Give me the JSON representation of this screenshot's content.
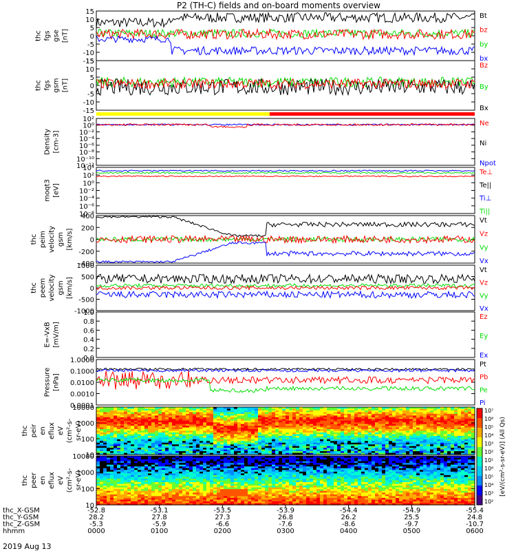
{
  "title": "P2 (TH-C) fields and on-board moments overview",
  "date_label": "2019 Aug 13",
  "colors": {
    "black": "#000000",
    "red": "#ff0000",
    "green": "#00dd00",
    "blue": "#0000ff",
    "yellow": "#ffff00"
  },
  "chart_data": [
    {
      "type": "line",
      "panel": "fgs_gse",
      "ylabel": [
        "thc",
        "fgs",
        "gse",
        "[nT]"
      ],
      "ylim": [
        -15,
        15
      ],
      "yticks": [
        "15",
        "10",
        "5",
        "0",
        "-5",
        "-10",
        "-15"
      ],
      "legend": [
        "Bt",
        "bz",
        "by",
        "bx"
      ],
      "series": [
        {
          "name": "Bt",
          "color": "#000000",
          "pre": [
            7,
            12
          ],
          "post": [
            10,
            15
          ],
          "sign": 1
        },
        {
          "name": "bz",
          "color": "#ff0000",
          "pre": [
            0,
            3
          ],
          "post": [
            1,
            3
          ],
          "sign": 1
        },
        {
          "name": "by",
          "color": "#00dd00",
          "pre": [
            1,
            3
          ],
          "post": [
            1,
            2
          ],
          "sign": 1
        },
        {
          "name": "bx",
          "color": "#0000ff",
          "pre": [
            -1,
            -3
          ],
          "post": [
            -8,
            -12
          ],
          "sign": -1
        }
      ]
    },
    {
      "type": "line",
      "panel": "fgs_gsm",
      "ylabel": [
        "thc",
        "fgs",
        "gsm",
        "[nT]"
      ],
      "ylim": [
        -15,
        15
      ],
      "yticks": [
        "15",
        "10",
        "5",
        "0",
        "-5",
        "-10",
        "-15"
      ],
      "legend": [
        "Bz",
        "By",
        "Bx"
      ],
      "series": [
        {
          "name": "Bz",
          "color": "#ff0000",
          "base": 1
        },
        {
          "name": "By",
          "color": "#00dd00",
          "base": 2
        },
        {
          "name": "Bx",
          "color": "#000000",
          "base": -2
        }
      ]
    },
    {
      "type": "line",
      "panel": "density",
      "ylabel": [
        "Density",
        "[cm-3]"
      ],
      "yticks": [
        "10²",
        "10⁰",
        "10⁻²",
        "10⁻⁴",
        "10⁻⁶",
        "10⁻⁸",
        "10⁻¹⁰",
        "10⁻¹²"
      ],
      "legend": [
        "Ne",
        "Ni",
        "Npot"
      ],
      "series": [
        {
          "name": "Ne",
          "color": "#ff0000",
          "log": 0
        },
        {
          "name": "Npot",
          "color": "#0000ff",
          "log": 0
        }
      ]
    },
    {
      "type": "line",
      "panel": "temperature",
      "ylabel": [
        "moqt3",
        "[eV]"
      ],
      "yticks": [
        "10⁴",
        "10²",
        "10⁰",
        "10⁻²",
        "10⁻⁴",
        "10⁻⁶",
        "10⁻⁸"
      ],
      "legend": [
        "Te⊥",
        "Te||",
        "Ti⊥",
        "Ti||"
      ],
      "series": [
        {
          "name": "Ti⊥",
          "color": "#0000ff",
          "log": 3
        },
        {
          "name": "Ti||",
          "color": "#00dd00",
          "log": 2.5
        },
        {
          "name": "Te⊥",
          "color": "#ff0000",
          "log": 1.6
        }
      ]
    },
    {
      "type": "line",
      "panel": "peim_velocity",
      "ylabel": [
        "thc",
        "peim",
        "velocity",
        "gsm",
        "[km/s]"
      ],
      "ylim": [
        -400,
        400
      ],
      "yticks": [
        "400",
        "200",
        "0",
        "-200",
        "-400"
      ],
      "legend": [
        "Vt",
        "Vz",
        "Vy",
        "Vx"
      ],
      "series": [
        {
          "name": "Vt",
          "color": "#000000"
        },
        {
          "name": "Vz",
          "color": "#ff0000"
        },
        {
          "name": "Vy",
          "color": "#00dd00"
        },
        {
          "name": "Vx",
          "color": "#0000ff"
        }
      ]
    },
    {
      "type": "line",
      "panel": "peem_velocity",
      "ylabel": [
        "thc",
        "peem",
        "velocity",
        "gsm",
        "[km/s]"
      ],
      "ylim": [
        -1000,
        1000
      ],
      "yticks": [
        "1000",
        "500",
        "0",
        "-500",
        "-1000"
      ],
      "legend": [
        "Vt",
        "Vz",
        "Vy",
        "Vx"
      ]
    },
    {
      "type": "line",
      "panel": "efield",
      "ylabel": [
        "E=-VxB",
        "[mV/m]"
      ],
      "ylim": [
        0,
        1
      ],
      "yticks": [
        "1.0",
        "0.8",
        "0.6",
        "0.4",
        "0.2",
        "0.0"
      ],
      "legend": [
        "Ez",
        "Ey",
        "Ex"
      ]
    },
    {
      "type": "line",
      "panel": "pressure",
      "ylabel": [
        "Pressure",
        "[nPa]"
      ],
      "yticks": [
        "1.0000",
        "0.1000",
        "0.0100",
        "0.0010",
        "0.0001"
      ],
      "legend": [
        "Pt",
        "Pb",
        "Pe",
        "Pi"
      ]
    },
    {
      "type": "heatmap",
      "panel": "peir_eflux",
      "ylabel": [
        "thc",
        "peir",
        "en",
        "eflux",
        "eV",
        "(cm²-s-",
        "sr-eV)"
      ],
      "yticks": [
        "10000",
        "1000",
        "100",
        "10"
      ]
    },
    {
      "type": "heatmap",
      "panel": "peer_eflux",
      "ylabel": [
        "thc",
        "peer",
        "en",
        "eflux",
        "eV",
        "(cm²-s-",
        "sr-eV)"
      ],
      "yticks": [
        "10000",
        "1000",
        "100",
        "10"
      ]
    },
    {
      "type": "heatmap",
      "panel": "colorbar",
      "ylabel": "[eV/(cm²-s-sr-eV)]  (All Qs)",
      "ticks": [
        "10⁷",
        "10⁶",
        "10⁵",
        "10⁴",
        "10³",
        "10²",
        "10¹",
        "10⁶",
        "10⁵",
        "10⁴",
        "10³",
        "10²"
      ]
    }
  ],
  "x_axis": {
    "row_labels": [
      "thc_X-GSM",
      "thc_Y-GSM",
      "thc_Z-GSM",
      "hhmm"
    ],
    "cols": [
      [
        "-52.8",
        "28.2",
        "-5.3",
        "0000"
      ],
      [
        "-53.1",
        "27.8",
        "-5.9",
        "0100"
      ],
      [
        "-53.5",
        "27.3",
        "-6.6",
        "0200"
      ],
      [
        "-53.9",
        "26.8",
        "-7.6",
        "0300"
      ],
      [
        "-54.4",
        "26.2",
        "-8.6",
        "0400"
      ],
      [
        "-54.9",
        "25.5",
        "-9.7",
        "0500"
      ],
      [
        "-55.4",
        "24.8",
        "-10.7",
        "0600"
      ]
    ]
  },
  "mode_bar": {
    "segments": [
      {
        "color": "#ffff00",
        "from": "0000",
        "to": "0250"
      },
      {
        "color": "#ff0000",
        "from": "0250",
        "to": "0600"
      }
    ]
  }
}
